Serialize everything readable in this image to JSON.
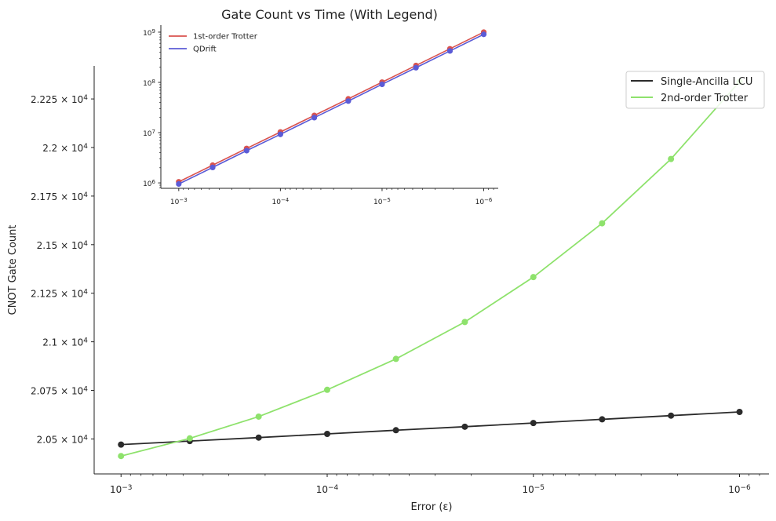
{
  "chart_data": [
    {
      "type": "line",
      "title": "",
      "xlabel": "Error (ε)",
      "ylabel": "CNOT Gate Count",
      "x_scale": "log",
      "x_inverted": true,
      "x": [
        0.001,
        0.000464,
        0.000215,
        0.0001,
        4.64e-05,
        2.15e-05,
        1e-05,
        4.64e-06,
        2.15e-06,
        1e-06
      ],
      "xlim": [
        0.00135,
        7.2e-07
      ],
      "ylim": [
        20320,
        22420
      ],
      "x_ticks": [
        {
          "value": 0.001,
          "base": "10",
          "exp": "−3"
        },
        {
          "value": 0.0001,
          "base": "10",
          "exp": "−4"
        },
        {
          "value": 1e-05,
          "base": "10",
          "exp": "−5"
        },
        {
          "value": 1e-06,
          "base": "10",
          "exp": "−6"
        }
      ],
      "y_ticks": [
        {
          "value": 20500,
          "mant": "2.05",
          "base": "10",
          "exp": "4"
        },
        {
          "value": 20750,
          "mant": "2.075",
          "base": "10",
          "exp": "4"
        },
        {
          "value": 21000,
          "mant": "2.1",
          "base": "10",
          "exp": "4"
        },
        {
          "value": 21250,
          "mant": "2.125",
          "base": "10",
          "exp": "4"
        },
        {
          "value": 21500,
          "mant": "2.15",
          "base": "10",
          "exp": "4"
        },
        {
          "value": 21750,
          "mant": "2.175",
          "base": "10",
          "exp": "4"
        },
        {
          "value": 22000,
          "mant": "2.2",
          "base": "10",
          "exp": "4"
        },
        {
          "value": 22250,
          "mant": "2.225",
          "base": "10",
          "exp": "4"
        }
      ],
      "grid": false,
      "legend_position": "top-right",
      "series": [
        {
          "name": "Single-Ancilla LCU",
          "color": "#2b2b2b",
          "values": [
            20471,
            20489,
            20507,
            20526,
            20545,
            20563,
            20582,
            20601,
            20620,
            20639
          ]
        },
        {
          "name": "2nd-order Trotter",
          "color": "#8ee26c",
          "values": [
            20412,
            20503,
            20615,
            20753,
            20912,
            21102,
            21333,
            21610,
            21941,
            22339
          ]
        }
      ]
    },
    {
      "type": "line",
      "title": "Gate Count vs Time (With Legend)",
      "x_scale": "log",
      "y_scale": "log",
      "x_inverted": true,
      "x": [
        0.001,
        0.000464,
        0.000215,
        0.0001,
        4.64e-05,
        2.15e-05,
        1e-05,
        4.64e-06,
        2.15e-06,
        1e-06
      ],
      "xlim": [
        0.0015,
        7.2e-07
      ],
      "ylim": [
        780000,
        1380000000
      ],
      "x_ticks": [
        {
          "value": 0.001,
          "base": "10",
          "exp": "−3"
        },
        {
          "value": 0.0001,
          "base": "10",
          "exp": "−4"
        },
        {
          "value": 1e-05,
          "base": "10",
          "exp": "−5"
        },
        {
          "value": 1e-06,
          "base": "10",
          "exp": "−6"
        }
      ],
      "y_ticks": [
        {
          "value": 1000000,
          "base": "10",
          "exp": "6"
        },
        {
          "value": 10000000,
          "base": "10",
          "exp": "7"
        },
        {
          "value": 100000000,
          "base": "10",
          "exp": "8"
        },
        {
          "value": 1000000000,
          "base": "10",
          "exp": "9"
        }
      ],
      "grid": false,
      "legend_position": "top-left",
      "series": [
        {
          "name": "1st-order Trotter",
          "color": "#d9534f",
          "values": [
            1050000,
            2250000,
            4850000,
            10300000,
            22000000,
            47000000,
            101000000,
            217000000,
            466000000,
            1000000000
          ]
        },
        {
          "name": "QDrift",
          "color": "#5b5bd6",
          "values": [
            950000,
            2030000,
            4380000,
            9250000,
            19900000,
            42500000,
            91500000,
            196000000,
            422000000,
            905000000
          ]
        }
      ]
    }
  ]
}
